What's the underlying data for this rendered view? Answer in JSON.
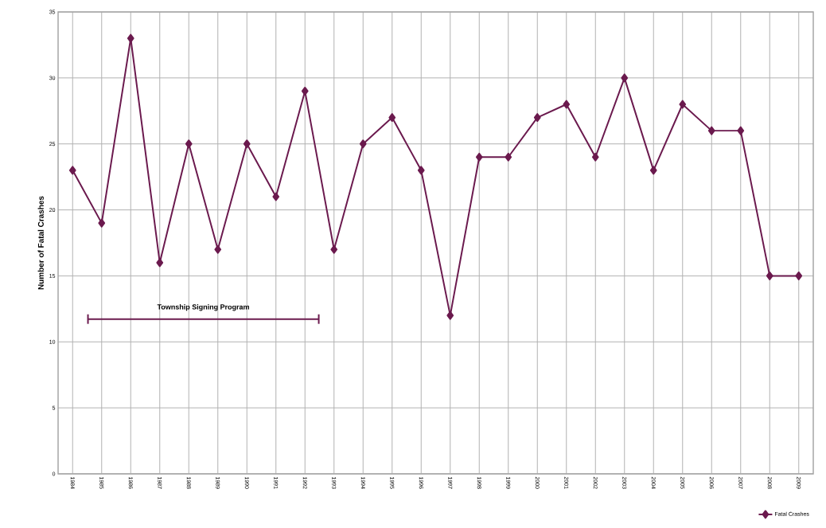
{
  "chart_data": {
    "type": "line",
    "ylabel": "Number of Fatal Crashes",
    "categories": [
      "1984",
      "1985",
      "1986",
      "1987",
      "1988",
      "1989",
      "1990",
      "1991",
      "1992",
      "1993",
      "1994",
      "1995",
      "1996",
      "1997",
      "1998",
      "1999",
      "2000",
      "2001",
      "2002",
      "2003",
      "2004",
      "2005",
      "2006",
      "2007",
      "2008",
      "2009"
    ],
    "series": [
      {
        "name": "Fatal Crashes",
        "color": "#6b1a4e",
        "values": [
          23,
          19,
          33,
          16,
          25,
          17,
          25,
          21,
          29,
          17,
          25,
          27,
          23,
          12,
          24,
          24,
          27,
          28,
          24,
          30,
          23,
          28,
          26,
          26,
          15,
          15
        ]
      }
    ],
    "ylim": [
      0,
      35
    ],
    "yticks": [
      0,
      5,
      10,
      15,
      20,
      25,
      30,
      35
    ],
    "annotations": [
      "Township Signing Program"
    ],
    "grid": true,
    "legend": "bottom right",
    "marker": "diamond",
    "line_style": "solid"
  }
}
